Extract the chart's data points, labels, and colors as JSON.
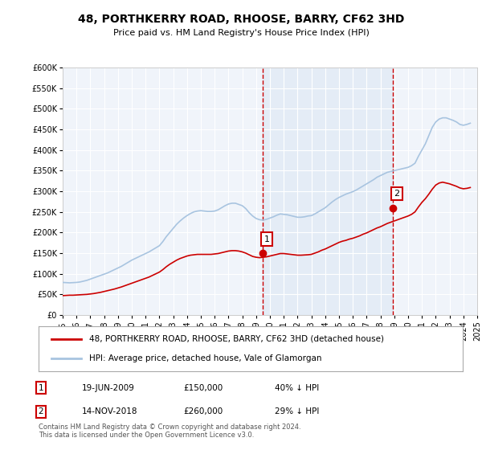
{
  "title": "48, PORTHKERRY ROAD, RHOOSE, BARRY, CF62 3HD",
  "subtitle": "Price paid vs. HM Land Registry's House Price Index (HPI)",
  "ylabel_ticks": [
    "£0",
    "£50K",
    "£100K",
    "£150K",
    "£200K",
    "£250K",
    "£300K",
    "£350K",
    "£400K",
    "£450K",
    "£500K",
    "£550K",
    "£600K"
  ],
  "ytick_values": [
    0,
    50000,
    100000,
    150000,
    200000,
    250000,
    300000,
    350000,
    400000,
    450000,
    500000,
    550000,
    600000
  ],
  "xmin": 1995,
  "xmax": 2025,
  "xticks": [
    1995,
    1996,
    1997,
    1998,
    1999,
    2000,
    2001,
    2002,
    2003,
    2004,
    2005,
    2006,
    2007,
    2008,
    2009,
    2010,
    2011,
    2012,
    2013,
    2014,
    2015,
    2016,
    2017,
    2018,
    2019,
    2020,
    2021,
    2022,
    2023,
    2024,
    2025
  ],
  "hpi_color": "#a8c4e0",
  "price_color": "#cc0000",
  "marker1_x": 2009.47,
  "marker1_y": 150000,
  "marker2_x": 2018.87,
  "marker2_y": 260000,
  "marker1_label": "1",
  "marker2_label": "2",
  "vline1_x": 2009.47,
  "vline2_x": 2018.87,
  "shade_start": 2009.47,
  "shade_end": 2018.87,
  "legend_line1": "48, PORTHKERRY ROAD, RHOOSE, BARRY, CF62 3HD (detached house)",
  "legend_line2": "HPI: Average price, detached house, Vale of Glamorgan",
  "annotation1": [
    "1",
    "19-JUN-2009",
    "£150,000",
    "40% ↓ HPI"
  ],
  "annotation2": [
    "2",
    "14-NOV-2018",
    "£260,000",
    "29% ↓ HPI"
  ],
  "footnote": "Contains HM Land Registry data © Crown copyright and database right 2024.\nThis data is licensed under the Open Government Licence v3.0.",
  "bg_color": "#ffffff",
  "plot_bg_color": "#f0f4fa",
  "grid_color": "#ffffff",
  "hpi_data_x": [
    1995.0,
    1995.25,
    1995.5,
    1995.75,
    1996.0,
    1996.25,
    1996.5,
    1996.75,
    1997.0,
    1997.25,
    1997.5,
    1997.75,
    1998.0,
    1998.25,
    1998.5,
    1998.75,
    1999.0,
    1999.25,
    1999.5,
    1999.75,
    2000.0,
    2000.25,
    2000.5,
    2000.75,
    2001.0,
    2001.25,
    2001.5,
    2001.75,
    2002.0,
    2002.25,
    2002.5,
    2002.75,
    2003.0,
    2003.25,
    2003.5,
    2003.75,
    2004.0,
    2004.25,
    2004.5,
    2004.75,
    2005.0,
    2005.25,
    2005.5,
    2005.75,
    2006.0,
    2006.25,
    2006.5,
    2006.75,
    2007.0,
    2007.25,
    2007.5,
    2007.75,
    2008.0,
    2008.25,
    2008.5,
    2008.75,
    2009.0,
    2009.25,
    2009.5,
    2009.75,
    2010.0,
    2010.25,
    2010.5,
    2010.75,
    2011.0,
    2011.25,
    2011.5,
    2011.75,
    2012.0,
    2012.25,
    2012.5,
    2012.75,
    2013.0,
    2013.25,
    2013.5,
    2013.75,
    2014.0,
    2014.25,
    2014.5,
    2014.75,
    2015.0,
    2015.25,
    2015.5,
    2015.75,
    2016.0,
    2016.25,
    2016.5,
    2016.75,
    2017.0,
    2017.25,
    2017.5,
    2017.75,
    2018.0,
    2018.25,
    2018.5,
    2018.75,
    2019.0,
    2019.25,
    2019.5,
    2019.75,
    2020.0,
    2020.25,
    2020.5,
    2020.75,
    2021.0,
    2021.25,
    2021.5,
    2021.75,
    2022.0,
    2022.25,
    2022.5,
    2022.75,
    2023.0,
    2023.25,
    2023.5,
    2023.75,
    2024.0,
    2024.25,
    2024.5
  ],
  "hpi_data_y": [
    79000,
    78500,
    78000,
    78500,
    79000,
    80000,
    82000,
    84000,
    87000,
    90000,
    93000,
    96000,
    99000,
    102000,
    106000,
    110000,
    114000,
    118000,
    123000,
    128000,
    133000,
    137000,
    141000,
    145000,
    149000,
    153000,
    158000,
    163000,
    168000,
    178000,
    190000,
    200000,
    210000,
    220000,
    228000,
    235000,
    241000,
    246000,
    250000,
    252000,
    253000,
    252000,
    251000,
    251000,
    252000,
    255000,
    260000,
    265000,
    269000,
    271000,
    271000,
    268000,
    265000,
    258000,
    248000,
    240000,
    234000,
    231000,
    230000,
    232000,
    235000,
    238000,
    242000,
    245000,
    244000,
    243000,
    241000,
    239000,
    237000,
    237000,
    238000,
    240000,
    241000,
    245000,
    250000,
    255000,
    260000,
    267000,
    274000,
    280000,
    285000,
    289000,
    293000,
    296000,
    299000,
    303000,
    308000,
    313000,
    318000,
    323000,
    328000,
    334000,
    338000,
    342000,
    346000,
    348000,
    350000,
    352000,
    354000,
    356000,
    358000,
    362000,
    368000,
    385000,
    400000,
    415000,
    435000,
    455000,
    468000,
    475000,
    478000,
    478000,
    475000,
    472000,
    468000,
    462000,
    460000,
    462000,
    465000
  ],
  "price_data_x": [
    1995.0,
    1995.25,
    1995.5,
    1995.75,
    1996.0,
    1996.25,
    1996.5,
    1996.75,
    1997.0,
    1997.25,
    1997.5,
    1997.75,
    1998.0,
    1998.25,
    1998.5,
    1998.75,
    1999.0,
    1999.25,
    1999.5,
    1999.75,
    2000.0,
    2000.25,
    2000.5,
    2000.75,
    2001.0,
    2001.25,
    2001.5,
    2001.75,
    2002.0,
    2002.25,
    2002.5,
    2002.75,
    2003.0,
    2003.25,
    2003.5,
    2003.75,
    2004.0,
    2004.25,
    2004.5,
    2004.75,
    2005.0,
    2005.25,
    2005.5,
    2005.75,
    2006.0,
    2006.25,
    2006.5,
    2006.75,
    2007.0,
    2007.25,
    2007.5,
    2007.75,
    2008.0,
    2008.25,
    2008.5,
    2008.75,
    2009.0,
    2009.25,
    2009.5,
    2009.75,
    2010.0,
    2010.25,
    2010.5,
    2010.75,
    2011.0,
    2011.25,
    2011.5,
    2011.75,
    2012.0,
    2012.25,
    2012.5,
    2012.75,
    2013.0,
    2013.25,
    2013.5,
    2013.75,
    2014.0,
    2014.25,
    2014.5,
    2014.75,
    2015.0,
    2015.25,
    2015.5,
    2015.75,
    2016.0,
    2016.25,
    2016.5,
    2016.75,
    2017.0,
    2017.25,
    2017.5,
    2017.75,
    2018.0,
    2018.25,
    2018.5,
    2018.75,
    2019.0,
    2019.25,
    2019.5,
    2019.75,
    2020.0,
    2020.25,
    2020.5,
    2020.75,
    2021.0,
    2021.25,
    2021.5,
    2021.75,
    2022.0,
    2022.25,
    2022.5,
    2022.75,
    2023.0,
    2023.25,
    2023.5,
    2023.75,
    2024.0,
    2024.25,
    2024.5
  ],
  "price_data_y": [
    47000,
    47500,
    48000,
    48000,
    48500,
    49000,
    49500,
    50000,
    51000,
    52000,
    53500,
    55000,
    57000,
    59000,
    61000,
    63000,
    65500,
    68000,
    71000,
    74000,
    77000,
    80000,
    83000,
    86000,
    89000,
    92000,
    96000,
    100000,
    104000,
    110000,
    117000,
    123000,
    128000,
    133000,
    137000,
    140000,
    143000,
    145000,
    146000,
    147000,
    147000,
    147000,
    147000,
    147000,
    148000,
    149000,
    151000,
    153000,
    155000,
    156000,
    156000,
    155000,
    153000,
    150000,
    146000,
    142000,
    140000,
    139000,
    140000,
    141000,
    143000,
    145000,
    147000,
    149000,
    149000,
    148000,
    147000,
    146000,
    145000,
    145000,
    145500,
    146000,
    147000,
    150000,
    153000,
    157000,
    160000,
    164000,
    168000,
    172000,
    176000,
    179000,
    181000,
    184000,
    186000,
    189000,
    192000,
    196000,
    199000,
    203000,
    207000,
    211000,
    214000,
    218000,
    222000,
    225000,
    228000,
    231000,
    234000,
    237000,
    240000,
    244000,
    250000,
    262000,
    273000,
    282000,
    293000,
    305000,
    315000,
    320000,
    322000,
    320000,
    318000,
    315000,
    312000,
    308000,
    306000,
    307000,
    309000
  ]
}
